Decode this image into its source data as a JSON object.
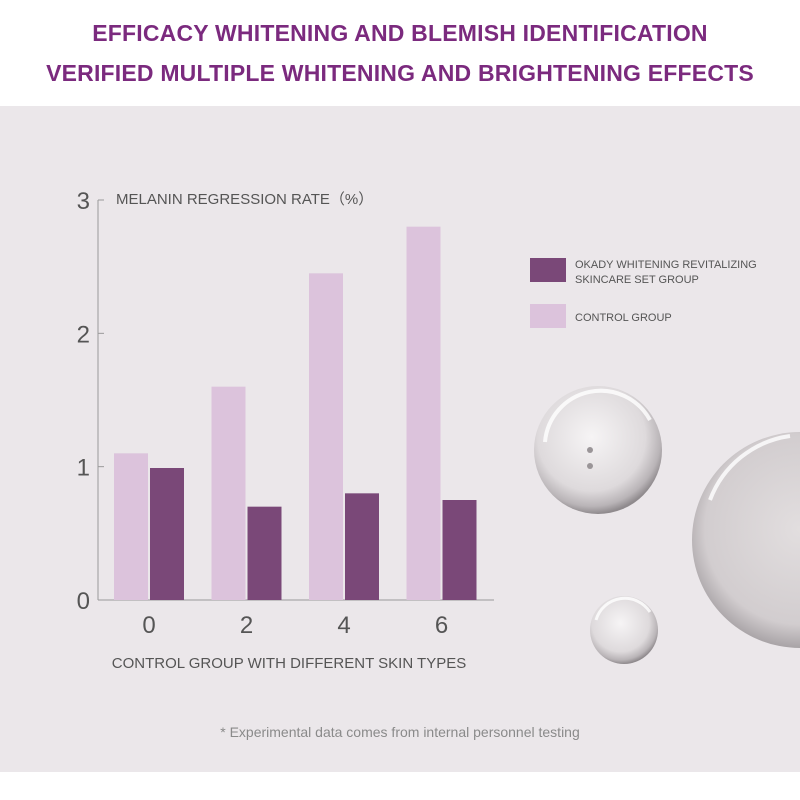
{
  "header": {
    "title_line1": "EFFICACY WHITENING AND BLEMISH IDENTIFICATION",
    "title_line2": "VERIFIED MULTIPLE WHITENING AND BRIGHTENING EFFECTS"
  },
  "chart_data": {
    "type": "bar",
    "ylabel": "MELANIN REGRESSION RATE（%）",
    "xlabel": "CONTROL GROUP WITH DIFFERENT SKIN TYPES",
    "categories": [
      "0",
      "2",
      "4",
      "6"
    ],
    "ylim": [
      0,
      3
    ],
    "yticks": [
      "0",
      "1",
      "2",
      "3"
    ],
    "grid": false,
    "legend_position": "right",
    "series": [
      {
        "name": "CONTROL GROUP",
        "color": "#dcc3dc",
        "values": [
          1.1,
          1.6,
          2.45,
          2.8
        ]
      },
      {
        "name": "OKADY WHITENING REVITALIZING SKINCARE SET GROUP",
        "color": "#7a4878",
        "values": [
          0.99,
          0.7,
          0.8,
          0.75
        ]
      }
    ],
    "legend": [
      {
        "line1": "OKADY WHITENING REVITALIZING",
        "line2": "SKINCARE SET GROUP",
        "color": "#7a4878"
      },
      {
        "line1": "CONTROL GROUP",
        "line2": "",
        "color": "#dcc3dc"
      }
    ]
  },
  "footnote": "* Experimental data comes from internal personnel testing"
}
